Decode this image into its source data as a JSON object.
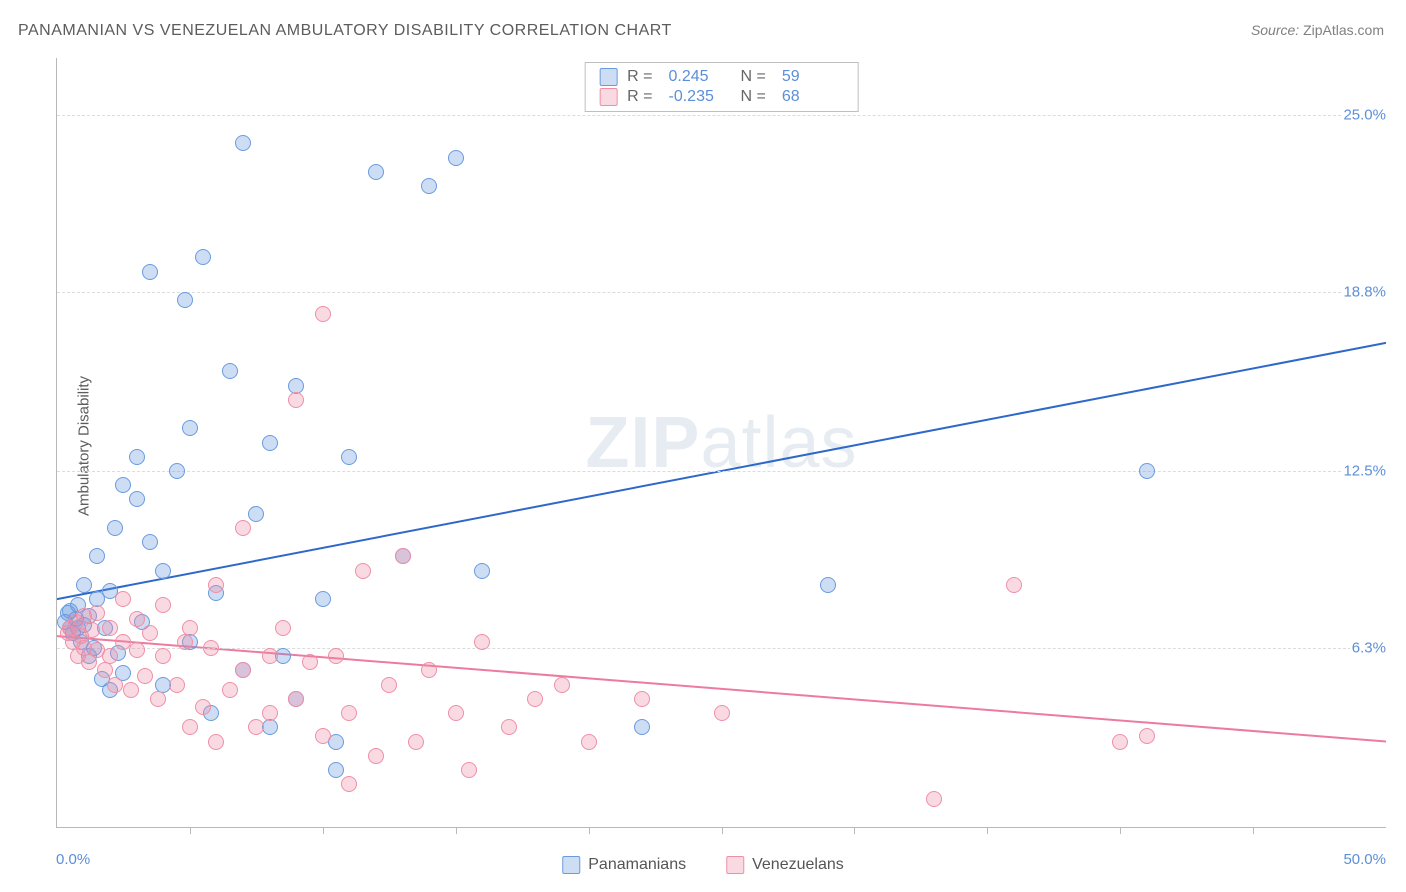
{
  "title": "PANAMANIAN VS VENEZUELAN AMBULATORY DISABILITY CORRELATION CHART",
  "source_label": "Source:",
  "source_value": "ZipAtlas.com",
  "ylabel": "Ambulatory Disability",
  "watermark_1": "ZIP",
  "watermark_2": "atlas",
  "chart": {
    "type": "scatter",
    "background_color": "#ffffff",
    "grid_color": "#dcdcdc",
    "axis_color": "#b8b8b8",
    "tick_label_color": "#5b8fd9",
    "xlim": [
      0,
      50
    ],
    "ylim": [
      0,
      27
    ],
    "y_gridlines": [
      6.3,
      12.5,
      18.8,
      25.0
    ],
    "y_tick_labels": [
      "6.3%",
      "12.5%",
      "18.8%",
      "25.0%"
    ],
    "x_ticks": [
      5,
      10,
      15,
      20,
      25,
      30,
      35,
      40,
      45
    ],
    "x_min_label": "0.0%",
    "x_max_label": "50.0%",
    "marker_radius": 8,
    "marker_border_width": 1.2,
    "trend_line_width": 2,
    "series": [
      {
        "name": "Panamanians",
        "fill_color": "rgba(100,150,220,0.32)",
        "stroke_color": "#6a9be0",
        "trend_color": "#2e68c9",
        "trend": {
          "y_at_xmin": 8.0,
          "y_at_xmax": 17.0
        },
        "R_label": "R =",
        "R_value": "0.245",
        "N_label": "N =",
        "N_value": "59",
        "points": [
          [
            0.3,
            7.2
          ],
          [
            0.4,
            7.5
          ],
          [
            0.5,
            7.0
          ],
          [
            0.5,
            7.6
          ],
          [
            0.6,
            6.8
          ],
          [
            0.7,
            7.3
          ],
          [
            0.8,
            7.0
          ],
          [
            0.8,
            7.8
          ],
          [
            0.9,
            6.5
          ],
          [
            1.0,
            7.1
          ],
          [
            1.0,
            8.5
          ],
          [
            1.2,
            6.0
          ],
          [
            1.2,
            7.4
          ],
          [
            1.4,
            6.3
          ],
          [
            1.5,
            8.0
          ],
          [
            1.5,
            9.5
          ],
          [
            1.7,
            5.2
          ],
          [
            1.8,
            7.0
          ],
          [
            2.0,
            4.8
          ],
          [
            2.0,
            8.3
          ],
          [
            2.2,
            10.5
          ],
          [
            2.3,
            6.1
          ],
          [
            2.5,
            12.0
          ],
          [
            2.5,
            5.4
          ],
          [
            3.0,
            11.5
          ],
          [
            3.0,
            13.0
          ],
          [
            3.2,
            7.2
          ],
          [
            3.5,
            10.0
          ],
          [
            3.5,
            19.5
          ],
          [
            4.0,
            5.0
          ],
          [
            4.0,
            9.0
          ],
          [
            4.5,
            12.5
          ],
          [
            4.8,
            18.5
          ],
          [
            5.0,
            6.5
          ],
          [
            5.0,
            14.0
          ],
          [
            5.5,
            20.0
          ],
          [
            5.8,
            4.0
          ],
          [
            6.0,
            8.2
          ],
          [
            6.5,
            16.0
          ],
          [
            7.0,
            5.5
          ],
          [
            7.0,
            24.0
          ],
          [
            7.5,
            11.0
          ],
          [
            8.0,
            3.5
          ],
          [
            8.0,
            13.5
          ],
          [
            8.5,
            6.0
          ],
          [
            9.0,
            15.5
          ],
          [
            9.0,
            4.5
          ],
          [
            10.0,
            8.0
          ],
          [
            10.5,
            2.0
          ],
          [
            11.0,
            13.0
          ],
          [
            12.0,
            23.0
          ],
          [
            13.0,
            9.5
          ],
          [
            14.0,
            22.5
          ],
          [
            15.0,
            23.5
          ],
          [
            16.0,
            9.0
          ],
          [
            22.0,
            3.5
          ],
          [
            29.0,
            8.5
          ],
          [
            41.0,
            12.5
          ],
          [
            10.5,
            3.0
          ]
        ]
      },
      {
        "name": "Venezuelans",
        "fill_color": "rgba(240,140,165,0.32)",
        "stroke_color": "#ef8fa6",
        "trend_color": "#ec7ba0",
        "trend": {
          "y_at_xmin": 6.7,
          "y_at_xmax": 3.0
        },
        "R_label": "R =",
        "R_value": "-0.235",
        "N_label": "N =",
        "N_value": "68",
        "points": [
          [
            0.4,
            6.8
          ],
          [
            0.5,
            7.0
          ],
          [
            0.6,
            6.5
          ],
          [
            0.7,
            7.2
          ],
          [
            0.8,
            6.0
          ],
          [
            0.9,
            6.7
          ],
          [
            1.0,
            6.3
          ],
          [
            1.0,
            7.4
          ],
          [
            1.2,
            5.8
          ],
          [
            1.3,
            6.9
          ],
          [
            1.5,
            6.2
          ],
          [
            1.5,
            7.5
          ],
          [
            1.8,
            5.5
          ],
          [
            2.0,
            6.0
          ],
          [
            2.0,
            7.0
          ],
          [
            2.2,
            5.0
          ],
          [
            2.5,
            6.5
          ],
          [
            2.5,
            8.0
          ],
          [
            2.8,
            4.8
          ],
          [
            3.0,
            6.2
          ],
          [
            3.0,
            7.3
          ],
          [
            3.3,
            5.3
          ],
          [
            3.5,
            6.8
          ],
          [
            3.8,
            4.5
          ],
          [
            4.0,
            6.0
          ],
          [
            4.0,
            7.8
          ],
          [
            4.5,
            5.0
          ],
          [
            4.8,
            6.5
          ],
          [
            5.0,
            3.5
          ],
          [
            5.0,
            7.0
          ],
          [
            5.5,
            4.2
          ],
          [
            5.8,
            6.3
          ],
          [
            6.0,
            3.0
          ],
          [
            6.0,
            8.5
          ],
          [
            6.5,
            4.8
          ],
          [
            7.0,
            10.5
          ],
          [
            7.0,
            5.5
          ],
          [
            7.5,
            3.5
          ],
          [
            8.0,
            6.0
          ],
          [
            8.0,
            4.0
          ],
          [
            8.5,
            7.0
          ],
          [
            9.0,
            15.0
          ],
          [
            9.0,
            4.5
          ],
          [
            9.5,
            5.8
          ],
          [
            10.0,
            18.0
          ],
          [
            10.0,
            3.2
          ],
          [
            10.5,
            6.0
          ],
          [
            11.0,
            4.0
          ],
          [
            11.5,
            9.0
          ],
          [
            12.0,
            2.5
          ],
          [
            12.5,
            5.0
          ],
          [
            13.0,
            9.5
          ],
          [
            13.5,
            3.0
          ],
          [
            14.0,
            5.5
          ],
          [
            15.0,
            4.0
          ],
          [
            15.5,
            2.0
          ],
          [
            16.0,
            6.5
          ],
          [
            17.0,
            3.5
          ],
          [
            18.0,
            4.5
          ],
          [
            19.0,
            5.0
          ],
          [
            20.0,
            3.0
          ],
          [
            22.0,
            4.5
          ],
          [
            25.0,
            4.0
          ],
          [
            33.0,
            1.0
          ],
          [
            36.0,
            8.5
          ],
          [
            40.0,
            3.0
          ],
          [
            41.0,
            3.2
          ],
          [
            11.0,
            1.5
          ]
        ]
      }
    ]
  }
}
